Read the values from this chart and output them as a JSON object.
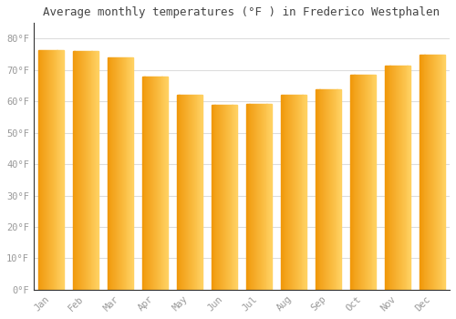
{
  "title": "Average monthly temperatures (°F ) in Frederico Westphalen",
  "months": [
    "Jan",
    "Feb",
    "Mar",
    "Apr",
    "May",
    "Jun",
    "Jul",
    "Aug",
    "Sep",
    "Oct",
    "Nov",
    "Dec"
  ],
  "values": [
    76.5,
    76.2,
    74.0,
    68.0,
    62.0,
    59.0,
    59.2,
    62.0,
    64.0,
    68.5,
    71.5,
    75.0
  ],
  "bar_color_left": "#F0980A",
  "bar_color_right": "#FFD060",
  "background_color": "#FFFFFF",
  "grid_color": "#dddddd",
  "title_fontsize": 9,
  "tick_fontsize": 7.5,
  "ytick_labels": [
    "0°F",
    "10°F",
    "20°F",
    "30°F",
    "40°F",
    "50°F",
    "60°F",
    "70°F",
    "80°F"
  ],
  "ytick_values": [
    0,
    10,
    20,
    30,
    40,
    50,
    60,
    70,
    80
  ],
  "ylim": [
    0,
    85
  ],
  "bar_width": 0.75,
  "n_gradient_steps": 30
}
